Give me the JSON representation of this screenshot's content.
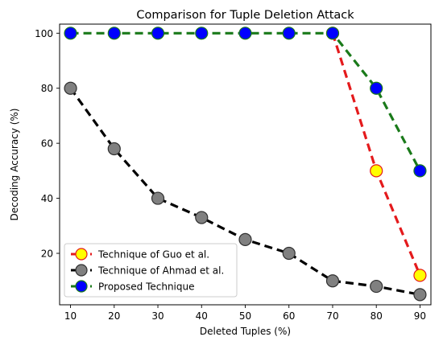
{
  "chart_data": {
    "type": "line",
    "title": "Comparison for Tuple Deletion Attack",
    "xlabel": "Deleted Tuples (%)",
    "ylabel": "Decoding Accuracy (%)",
    "xlim": [
      7.5,
      92.5
    ],
    "ylim": [
      1.3,
      103.3
    ],
    "xticks": [
      10,
      20,
      30,
      40,
      50,
      60,
      70,
      80,
      90
    ],
    "yticks": [
      20,
      40,
      60,
      80,
      100
    ],
    "grid": false,
    "legend_position": "lower-left",
    "series": [
      {
        "name": "Technique of Guo et al.",
        "line_color": "#e41a1c",
        "marker_fill": "#ffff00",
        "marker_edge": "#e41a1c",
        "x": [
          70,
          80,
          90
        ],
        "y": [
          100,
          50,
          12
        ]
      },
      {
        "name": "Technique of Ahmad et al.",
        "line_color": "#000000",
        "marker_fill": "#808080",
        "marker_edge": "#303030",
        "x": [
          10,
          20,
          30,
          40,
          50,
          60,
          70,
          80,
          90
        ],
        "y": [
          80,
          58,
          40,
          33,
          25,
          20,
          10,
          8,
          5
        ]
      },
      {
        "name": "Proposed Technique",
        "line_color": "#1a7a1a",
        "marker_fill": "#0000ff",
        "marker_edge": "#1a7a1a",
        "x": [
          10,
          20,
          30,
          40,
          50,
          60,
          70,
          80,
          90
        ],
        "y": [
          100,
          100,
          100,
          100,
          100,
          100,
          100,
          80,
          50
        ]
      }
    ]
  }
}
